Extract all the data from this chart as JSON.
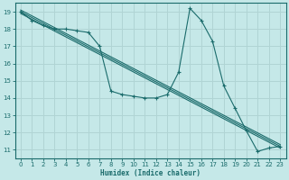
{
  "xlabel": "Humidex (Indice chaleur)",
  "bg_color": "#c5e8e8",
  "grid_color": "#b0d4d4",
  "line_color": "#1a6b6b",
  "xlim": [
    -0.5,
    23.5
  ],
  "ylim": [
    10.5,
    19.5
  ],
  "xticks": [
    0,
    1,
    2,
    3,
    4,
    5,
    6,
    7,
    8,
    9,
    10,
    11,
    12,
    13,
    14,
    15,
    16,
    17,
    18,
    19,
    20,
    21,
    22,
    23
  ],
  "yticks": [
    11,
    12,
    13,
    14,
    15,
    16,
    17,
    18,
    19
  ],
  "main_series": {
    "x": [
      0,
      1,
      2,
      3,
      4,
      5,
      6,
      7,
      8,
      9,
      10,
      11,
      12,
      13,
      14,
      15,
      16,
      17,
      18,
      19,
      20,
      21,
      22,
      23
    ],
    "y": [
      19.0,
      18.5,
      18.2,
      18.0,
      18.0,
      17.9,
      17.8,
      17.0,
      14.4,
      14.2,
      14.1,
      14.0,
      14.0,
      14.2,
      15.5,
      19.2,
      18.5,
      17.3,
      14.7,
      13.4,
      12.1,
      10.9,
      11.1,
      11.2
    ]
  },
  "trend_lines": [
    {
      "x": [
        0,
        23
      ],
      "y": [
        19.0,
        11.2
      ]
    },
    {
      "x": [
        0,
        23
      ],
      "y": [
        19.0,
        11.2
      ]
    },
    {
      "x": [
        0,
        23
      ],
      "y": [
        19.0,
        11.2
      ]
    }
  ]
}
